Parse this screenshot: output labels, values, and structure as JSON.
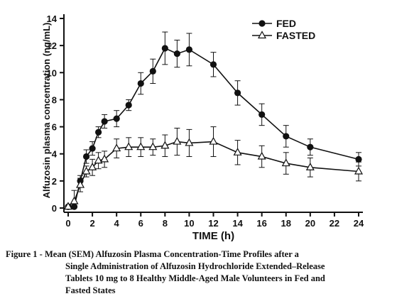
{
  "chart_data": {
    "type": "line",
    "xlabel": "TIME (h)",
    "ylabel": "Alfuzosin plasma concentration (ng/mL)",
    "xlim": [
      0,
      24
    ],
    "ylim": [
      0,
      14
    ],
    "xticks": [
      0,
      2,
      4,
      6,
      8,
      10,
      12,
      14,
      16,
      18,
      20,
      22,
      24
    ],
    "yticks": [
      0,
      2,
      4,
      6,
      8,
      10,
      12,
      14
    ],
    "legend_position": "top-right",
    "grid": false,
    "series": [
      {
        "name": "FED",
        "marker": "filled-circle",
        "color": "#111111",
        "x": [
          0,
          0.5,
          1,
          1.5,
          2,
          2.5,
          3,
          4,
          5,
          6,
          7,
          8,
          9,
          10,
          12,
          14,
          16,
          18,
          20,
          24
        ],
        "y": [
          0.1,
          0.1,
          2.0,
          3.8,
          4.4,
          5.6,
          6.4,
          6.6,
          7.6,
          9.2,
          10.1,
          11.8,
          11.4,
          11.7,
          10.6,
          8.5,
          6.9,
          5.3,
          4.5,
          3.6
        ],
        "err": [
          0.1,
          0.1,
          0.4,
          0.5,
          0.5,
          0.4,
          0.5,
          0.6,
          0.4,
          0.8,
          0.9,
          1.2,
          1.0,
          1.2,
          0.9,
          0.9,
          0.8,
          0.8,
          0.6,
          0.5
        ]
      },
      {
        "name": "FASTED",
        "marker": "open-triangle",
        "color": "#111111",
        "x": [
          0,
          0.5,
          1,
          1.5,
          2,
          2.5,
          3,
          4,
          5,
          6,
          7,
          8,
          9,
          10,
          12,
          14,
          16,
          18,
          20,
          24
        ],
        "y": [
          0.1,
          0.5,
          1.7,
          2.7,
          3.0,
          3.5,
          3.6,
          4.4,
          4.5,
          4.5,
          4.5,
          4.6,
          4.9,
          4.8,
          4.9,
          4.1,
          3.8,
          3.3,
          3.0,
          2.7
        ],
        "err": [
          0.1,
          0.8,
          0.5,
          0.4,
          0.6,
          0.6,
          0.6,
          0.7,
          0.7,
          0.7,
          0.6,
          0.8,
          1.0,
          1.0,
          1.1,
          0.9,
          0.8,
          0.8,
          0.7,
          0.7
        ]
      }
    ]
  },
  "caption": {
    "line1": "Figure 1 - Mean (SEM) Alfuzosin Plasma Concentration-Time Profiles after a",
    "line2": "Single Administration of Alfuzosin Hydrochloride Extended–Release",
    "line3": "Tablets 10 mg to 8 Healthy Middle-Aged Male Volunteers in Fed and",
    "line4": "Fasted States"
  }
}
